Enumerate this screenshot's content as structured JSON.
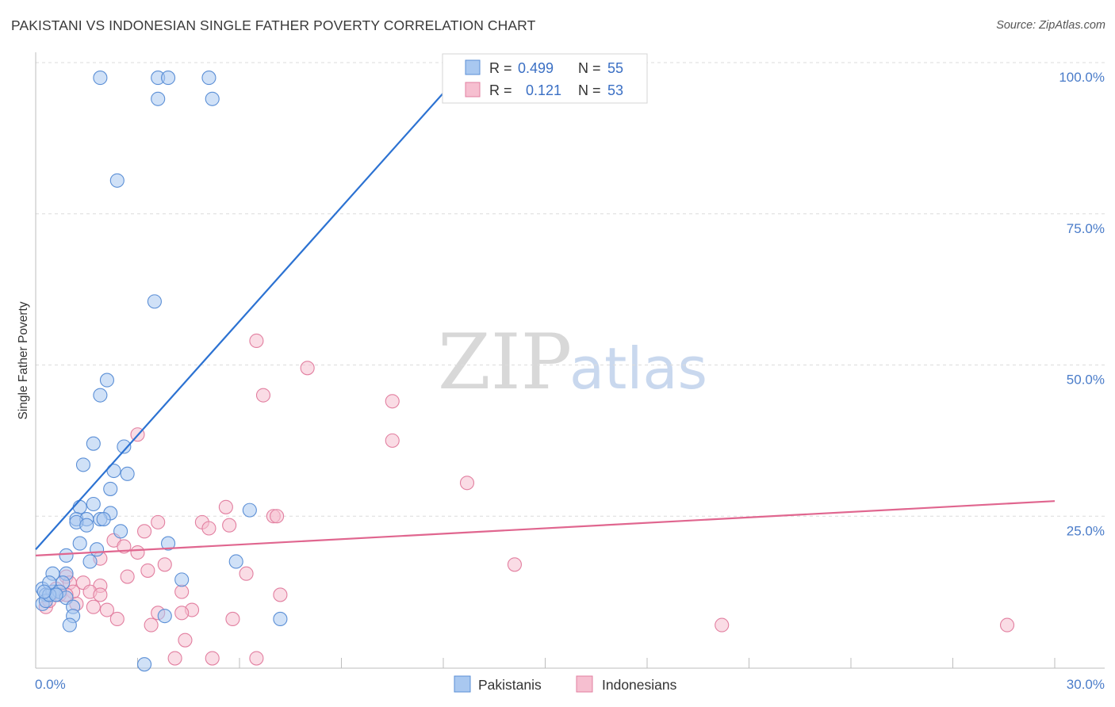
{
  "title": "PAKISTANI VS INDONESIAN SINGLE FATHER POVERTY CORRELATION CHART",
  "source": "Source: ZipAtlas.com",
  "watermark": {
    "zip": "ZIP",
    "atlas": "atlas"
  },
  "colors": {
    "pakistani_fill": "#a9c8f0",
    "pakistani_stroke": "#5b8fd6",
    "pakistani_line": "#2c72d2",
    "indonesian_fill": "#f6bfd0",
    "indonesian_stroke": "#e27fa0",
    "indonesian_line": "#e0668f",
    "tick_color": "#4a7cc9"
  },
  "legend": {
    "rows": [
      {
        "r_label": "R =",
        "r_value": "0.499",
        "n_label": "N =",
        "n_value": "55"
      },
      {
        "r_label": "R =",
        "r_value": "0.121",
        "n_label": "N =",
        "n_value": "53"
      }
    ]
  },
  "bottom_legend": [
    "Pakistanis",
    "Indonesians"
  ],
  "chart_data": {
    "type": "scatter",
    "title": "PAKISTANI VS INDONESIAN SINGLE FATHER POVERTY CORRELATION CHART",
    "xlabel": "",
    "ylabel": "Single Father Poverty",
    "xlim": [
      0,
      30
    ],
    "ylim": [
      0,
      100
    ],
    "x_tick_labels": [
      "0.0%",
      "30.0%"
    ],
    "y_tick_labels": [
      "100.0%",
      "75.0%",
      "50.0%",
      "25.0%"
    ],
    "y_ticks": [
      100,
      75,
      50,
      25
    ],
    "grid": true,
    "legend_position": "top-center",
    "series": [
      {
        "name": "Pakistanis",
        "r": 0.499,
        "n": 55,
        "trend": {
          "x": [
            0,
            12.8
          ],
          "y": [
            19.5,
            100
          ]
        },
        "points": [
          [
            1.9,
            97.5
          ],
          [
            3.6,
            97.5
          ],
          [
            3.9,
            97.5
          ],
          [
            5.1,
            97.5
          ],
          [
            3.6,
            94
          ],
          [
            5.2,
            94
          ],
          [
            2.4,
            80.5
          ],
          [
            3.5,
            60.5
          ],
          [
            2.1,
            47.5
          ],
          [
            1.9,
            45
          ],
          [
            1.7,
            37
          ],
          [
            2.6,
            36.5
          ],
          [
            1.4,
            33.5
          ],
          [
            2.3,
            32.5
          ],
          [
            2.7,
            32
          ],
          [
            2.2,
            29.5
          ],
          [
            1.7,
            27
          ],
          [
            1.3,
            26.5
          ],
          [
            2.2,
            25.5
          ],
          [
            6.3,
            26
          ],
          [
            1.2,
            24.5
          ],
          [
            1.5,
            24.5
          ],
          [
            1.9,
            24.5
          ],
          [
            2.0,
            24.5
          ],
          [
            1.2,
            24
          ],
          [
            1.5,
            23.5
          ],
          [
            2.5,
            22.5
          ],
          [
            1.3,
            20.5
          ],
          [
            3.9,
            20.5
          ],
          [
            1.8,
            19.5
          ],
          [
            0.9,
            18.5
          ],
          [
            1.6,
            17.5
          ],
          [
            5.9,
            17.5
          ],
          [
            0.5,
            15.5
          ],
          [
            0.9,
            15.5
          ],
          [
            4.3,
            14.5
          ],
          [
            0.8,
            14
          ],
          [
            0.2,
            13
          ],
          [
            0.3,
            12
          ],
          [
            0.5,
            12.5
          ],
          [
            0.6,
            12
          ],
          [
            0.7,
            12.5
          ],
          [
            0.9,
            11.5
          ],
          [
            0.2,
            10.5
          ],
          [
            0.3,
            11
          ],
          [
            0.4,
            12
          ],
          [
            0.6,
            12
          ],
          [
            1.1,
            10
          ],
          [
            1.1,
            8.5
          ],
          [
            3.8,
            8.5
          ],
          [
            7.2,
            8
          ],
          [
            1.0,
            7
          ],
          [
            3.2,
            0.5
          ],
          [
            0.4,
            14
          ],
          [
            0.25,
            12.5
          ]
        ]
      },
      {
        "name": "Indonesians",
        "r": 0.121,
        "n": 53,
        "trend": {
          "x": [
            0,
            30
          ],
          "y": [
            18.5,
            27.5
          ]
        },
        "points": [
          [
            6.5,
            54
          ],
          [
            8.0,
            49.5
          ],
          [
            6.7,
            45
          ],
          [
            10.5,
            44
          ],
          [
            3.0,
            38.5
          ],
          [
            10.5,
            37.5
          ],
          [
            12.7,
            30.5
          ],
          [
            5.6,
            26.5
          ],
          [
            7.0,
            25
          ],
          [
            7.1,
            25
          ],
          [
            3.6,
            24
          ],
          [
            4.9,
            24
          ],
          [
            5.7,
            23.5
          ],
          [
            3.2,
            22.5
          ],
          [
            5.1,
            23
          ],
          [
            2.3,
            21
          ],
          [
            2.6,
            20
          ],
          [
            3.0,
            19
          ],
          [
            1.9,
            18
          ],
          [
            3.8,
            17
          ],
          [
            14.1,
            17
          ],
          [
            3.3,
            16
          ],
          [
            6.2,
            15.5
          ],
          [
            2.7,
            15
          ],
          [
            0.9,
            15
          ],
          [
            1.4,
            14
          ],
          [
            1.0,
            14
          ],
          [
            1.9,
            13.5
          ],
          [
            0.6,
            13
          ],
          [
            1.1,
            12.5
          ],
          [
            1.6,
            12.5
          ],
          [
            0.7,
            12
          ],
          [
            1.9,
            12
          ],
          [
            4.3,
            12.5
          ],
          [
            7.2,
            12
          ],
          [
            1.2,
            10.5
          ],
          [
            0.3,
            10
          ],
          [
            1.7,
            10
          ],
          [
            2.1,
            9.5
          ],
          [
            0.4,
            11
          ],
          [
            4.6,
            9.5
          ],
          [
            3.6,
            9
          ],
          [
            4.3,
            9
          ],
          [
            2.4,
            8
          ],
          [
            5.8,
            8
          ],
          [
            0.9,
            12
          ],
          [
            3.4,
            7
          ],
          [
            20.2,
            7
          ],
          [
            28.6,
            7
          ],
          [
            4.4,
            4.5
          ],
          [
            4.1,
            1.5
          ],
          [
            5.2,
            1.5
          ],
          [
            6.5,
            1.5
          ]
        ]
      }
    ]
  }
}
